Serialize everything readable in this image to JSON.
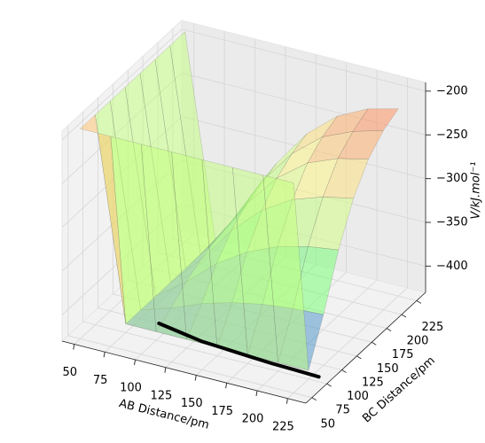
{
  "chart_data": {
    "type": "surface3d",
    "xlabel": "AB Distance/pm",
    "ylabel": "BC Distance/pm",
    "zlabel": "V/kJ.mol⁻¹",
    "xlim": [
      40,
      240
    ],
    "ylim": [
      40,
      240
    ],
    "zlim": [
      -430,
      -190
    ],
    "xticks": [
      50,
      75,
      100,
      125,
      150,
      175,
      200,
      225
    ],
    "yticks": [
      50,
      75,
      100,
      125,
      150,
      175,
      200,
      225
    ],
    "zticks": [
      {
        "value": -400,
        "label": "−400"
      },
      {
        "value": -350,
        "label": "−350"
      },
      {
        "value": -300,
        "label": "−300"
      },
      {
        "value": -250,
        "label": "−250"
      },
      {
        "value": -200,
        "label": "−200"
      }
    ],
    "grid": true,
    "surface": {
      "x": [
        50,
        75,
        100,
        125,
        150,
        175,
        200,
        225
      ],
      "y": [
        50,
        75,
        100,
        125,
        150,
        175,
        200,
        225
      ],
      "z": [
        [
          -190,
          -190,
          -190,
          -190,
          -190,
          -190,
          -190,
          -190
        ],
        [
          -190,
          -420,
          -420,
          -420,
          -420,
          -420,
          -420,
          -420
        ],
        [
          -190,
          -420,
          -409,
          -395,
          -385,
          -378,
          -374,
          -372
        ],
        [
          -190,
          -420,
          -395,
          -365,
          -343,
          -328,
          -319,
          -314
        ],
        [
          -190,
          -420,
          -385,
          -343,
          -311,
          -290,
          -278,
          -271
        ],
        [
          -190,
          -420,
          -378,
          -328,
          -290,
          -264,
          -250,
          -242
        ],
        [
          -190,
          -420,
          -374,
          -319,
          -278,
          -250,
          -235,
          -225
        ],
        [
          -190,
          -420,
          -372,
          -314,
          -271,
          -242,
          -225,
          -216
        ]
      ]
    },
    "trajectory": {
      "color": "#000000",
      "x": [
        90,
        110,
        130,
        150,
        170,
        190,
        210,
        230
      ],
      "y": [
        100,
        95,
        90,
        88,
        86,
        84,
        83,
        82
      ]
    }
  }
}
